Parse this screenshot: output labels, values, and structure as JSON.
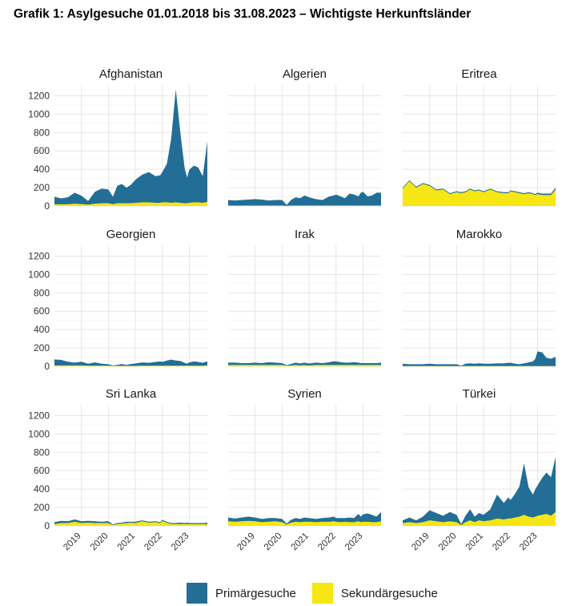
{
  "title": "Grafik 1: Asylgesuche 01.01.2018 bis 31.08.2023 – Wichtigste Herkunftsländer",
  "colors": {
    "primary": "#236e96",
    "secondary": "#f5e614",
    "grid": "#e6e6e6"
  },
  "legend": [
    {
      "label": "Primärgesuche",
      "color": "#236e96"
    },
    {
      "label": "Sekundärgesuche",
      "color": "#f5e614"
    }
  ],
  "chart_data": {
    "type": "area",
    "stacked": true,
    "facets": 9,
    "y_ticks": [
      0,
      200,
      400,
      600,
      800,
      1000,
      1200
    ],
    "x_tick_labels": [
      "2019",
      "2020",
      "2021",
      "2022",
      "2023"
    ],
    "x_range": [
      2018.0,
      2023.67
    ],
    "y_range": [
      0,
      1300
    ],
    "grid": true,
    "legend_position": "bottom",
    "panels": [
      {
        "name": "Afghanistan",
        "x": [
          2018.0,
          2018.25,
          2018.5,
          2018.75,
          2019.0,
          2019.25,
          2019.5,
          2019.75,
          2020.0,
          2020.17,
          2020.33,
          2020.5,
          2020.67,
          2020.83,
          2021.0,
          2021.25,
          2021.5,
          2021.75,
          2021.92,
          2022.0,
          2022.17,
          2022.33,
          2022.5,
          2022.67,
          2022.83,
          2022.92,
          2023.0,
          2023.17,
          2023.33,
          2023.5,
          2023.67
        ],
        "series": [
          {
            "name": "Primärgesuche",
            "values": [
              80,
              65,
              75,
              120,
              90,
              40,
              130,
              160,
              150,
              80,
              190,
              210,
              170,
              200,
              250,
              300,
              330,
              290,
              300,
              330,
              420,
              700,
              1230,
              760,
              380,
              280,
              360,
              400,
              380,
              290,
              660
            ]
          },
          {
            "name": "Sekundärgesuche",
            "values": [
              20,
              18,
              20,
              25,
              22,
              15,
              25,
              30,
              30,
              20,
              30,
              30,
              30,
              30,
              35,
              40,
              40,
              35,
              35,
              40,
              40,
              35,
              40,
              35,
              30,
              30,
              35,
              40,
              40,
              35,
              45
            ]
          }
        ]
      },
      {
        "name": "Algerien",
        "x": [
          2018.0,
          2018.25,
          2018.5,
          2018.75,
          2019.0,
          2019.25,
          2019.5,
          2019.75,
          2020.0,
          2020.17,
          2020.33,
          2020.5,
          2020.67,
          2020.83,
          2021.0,
          2021.25,
          2021.5,
          2021.75,
          2021.92,
          2022.0,
          2022.17,
          2022.33,
          2022.5,
          2022.67,
          2022.83,
          2022.92,
          2023.0,
          2023.17,
          2023.33,
          2023.5,
          2023.67
        ],
        "series": [
          {
            "name": "Primärgesuche",
            "values": [
              60,
              55,
              60,
              65,
              70,
              65,
              55,
              60,
              60,
              10,
              60,
              90,
              80,
              110,
              90,
              70,
              60,
              100,
              110,
              120,
              100,
              80,
              130,
              120,
              100,
              140,
              150,
              100,
              110,
              140,
              140
            ]
          },
          {
            "name": "Sekundärgesuche",
            "values": [
              5,
              5,
              5,
              5,
              5,
              5,
              5,
              5,
              5,
              2,
              5,
              5,
              5,
              5,
              5,
              5,
              5,
              5,
              5,
              5,
              5,
              5,
              5,
              5,
              5,
              5,
              5,
              5,
              5,
              5,
              5
            ]
          }
        ]
      },
      {
        "name": "Eritrea",
        "x": [
          2018.0,
          2018.25,
          2018.5,
          2018.75,
          2019.0,
          2019.25,
          2019.5,
          2019.75,
          2020.0,
          2020.17,
          2020.33,
          2020.5,
          2020.67,
          2020.83,
          2021.0,
          2021.25,
          2021.5,
          2021.75,
          2021.92,
          2022.0,
          2022.17,
          2022.33,
          2022.5,
          2022.67,
          2022.83,
          2022.92,
          2023.0,
          2023.17,
          2023.33,
          2023.5,
          2023.67
        ],
        "series": [
          {
            "name": "Primärgesuche",
            "values": [
              10,
              10,
              10,
              10,
              10,
              10,
              10,
              10,
              10,
              10,
              10,
              10,
              10,
              10,
              10,
              10,
              10,
              10,
              10,
              10,
              10,
              10,
              10,
              10,
              10,
              10,
              15,
              15,
              15,
              15,
              20
            ]
          },
          {
            "name": "Sekundärgesuche",
            "values": [
              190,
              270,
              200,
              240,
              220,
              170,
              180,
              130,
              150,
              140,
              150,
              180,
              160,
              170,
              150,
              180,
              150,
              140,
              140,
              160,
              150,
              140,
              130,
              140,
              130,
              120,
              130,
              120,
              120,
              120,
              180
            ]
          }
        ]
      },
      {
        "name": "Georgien",
        "x": [
          2018.0,
          2018.25,
          2018.5,
          2018.75,
          2019.0,
          2019.25,
          2019.5,
          2019.75,
          2020.0,
          2020.17,
          2020.33,
          2020.5,
          2020.67,
          2020.83,
          2021.0,
          2021.25,
          2021.5,
          2021.75,
          2021.92,
          2022.0,
          2022.17,
          2022.33,
          2022.5,
          2022.67,
          2022.83,
          2022.92,
          2023.0,
          2023.17,
          2023.33,
          2023.5,
          2023.67
        ],
        "series": [
          {
            "name": "Primärgesuche",
            "values": [
              65,
              60,
              40,
              30,
              40,
              20,
              35,
              20,
              15,
              5,
              10,
              20,
              10,
              20,
              25,
              35,
              30,
              40,
              45,
              40,
              55,
              65,
              55,
              50,
              30,
              20,
              35,
              45,
              40,
              30,
              45
            ]
          },
          {
            "name": "Sekundärgesuche",
            "values": [
              10,
              10,
              10,
              10,
              10,
              8,
              8,
              8,
              8,
              5,
              5,
              5,
              5,
              5,
              5,
              8,
              8,
              8,
              8,
              8,
              8,
              8,
              8,
              8,
              8,
              8,
              8,
              8,
              8,
              8,
              10
            ]
          }
        ]
      },
      {
        "name": "Irak",
        "x": [
          2018.0,
          2018.25,
          2018.5,
          2018.75,
          2019.0,
          2019.25,
          2019.5,
          2019.75,
          2020.0,
          2020.17,
          2020.33,
          2020.5,
          2020.67,
          2020.83,
          2021.0,
          2021.25,
          2021.5,
          2021.75,
          2021.92,
          2022.0,
          2022.17,
          2022.33,
          2022.5,
          2022.67,
          2022.83,
          2022.92,
          2023.0,
          2023.17,
          2023.33,
          2023.5,
          2023.67
        ],
        "series": [
          {
            "name": "Primärgesuche",
            "values": [
              25,
              25,
              20,
              20,
              25,
              20,
              30,
              25,
              20,
              5,
              15,
              25,
              20,
              25,
              20,
              25,
              20,
              30,
              40,
              40,
              30,
              25,
              25,
              30,
              25,
              20,
              20,
              20,
              20,
              20,
              25
            ]
          },
          {
            "name": "Sekundärgesuche",
            "values": [
              15,
              15,
              15,
              15,
              15,
              15,
              15,
              15,
              15,
              8,
              10,
              15,
              10,
              15,
              10,
              15,
              15,
              15,
              15,
              15,
              15,
              15,
              15,
              15,
              15,
              15,
              15,
              15,
              15,
              15,
              15
            ]
          }
        ]
      },
      {
        "name": "Marokko",
        "x": [
          2018.0,
          2018.25,
          2018.5,
          2018.75,
          2019.0,
          2019.25,
          2019.5,
          2019.75,
          2020.0,
          2020.17,
          2020.33,
          2020.5,
          2020.67,
          2020.83,
          2021.0,
          2021.25,
          2021.5,
          2021.75,
          2021.92,
          2022.0,
          2022.17,
          2022.33,
          2022.5,
          2022.67,
          2022.83,
          2022.92,
          2023.0,
          2023.17,
          2023.33,
          2023.5,
          2023.67
        ],
        "series": [
          {
            "name": "Primärgesuche",
            "values": [
              25,
              20,
              20,
              20,
              25,
              20,
              20,
              20,
              20,
              5,
              25,
              30,
              25,
              30,
              25,
              25,
              30,
              30,
              35,
              35,
              25,
              20,
              30,
              40,
              50,
              80,
              160,
              150,
              90,
              80,
              100
            ]
          },
          {
            "name": "Sekundärgesuche",
            "values": [
              3,
              3,
              3,
              3,
              3,
              3,
              3,
              3,
              3,
              2,
              3,
              3,
              3,
              3,
              3,
              3,
              3,
              3,
              3,
              3,
              3,
              3,
              3,
              3,
              3,
              3,
              3,
              3,
              3,
              3,
              3
            ]
          }
        ]
      },
      {
        "name": "Sri Lanka",
        "x": [
          2018.0,
          2018.25,
          2018.5,
          2018.75,
          2019.0,
          2019.25,
          2019.5,
          2019.75,
          2020.0,
          2020.17,
          2020.33,
          2020.5,
          2020.67,
          2020.83,
          2021.0,
          2021.25,
          2021.5,
          2021.75,
          2021.92,
          2022.0,
          2022.17,
          2022.33,
          2022.5,
          2022.67,
          2022.83,
          2022.92,
          2023.0,
          2023.17,
          2023.33,
          2023.5,
          2023.67
        ],
        "series": [
          {
            "name": "Primärgesuche",
            "values": [
              20,
              25,
              20,
              25,
              20,
              20,
              20,
              15,
              20,
              5,
              10,
              10,
              15,
              10,
              15,
              10,
              10,
              10,
              10,
              10,
              10,
              10,
              10,
              15,
              10,
              15,
              10,
              10,
              10,
              10,
              15
            ]
          },
          {
            "name": "Sekundärgesuche",
            "values": [
              20,
              30,
              30,
              45,
              30,
              35,
              30,
              30,
              30,
              10,
              20,
              25,
              30,
              35,
              30,
              50,
              35,
              40,
              30,
              55,
              35,
              20,
              20,
              20,
              20,
              20,
              20,
              20,
              20,
              20,
              20
            ]
          }
        ]
      },
      {
        "name": "Syrien",
        "x": [
          2018.0,
          2018.25,
          2018.5,
          2018.75,
          2019.0,
          2019.25,
          2019.5,
          2019.75,
          2020.0,
          2020.17,
          2020.33,
          2020.5,
          2020.67,
          2020.83,
          2021.0,
          2021.25,
          2021.5,
          2021.75,
          2021.92,
          2022.0,
          2022.17,
          2022.33,
          2022.5,
          2022.67,
          2022.83,
          2022.92,
          2023.0,
          2023.17,
          2023.33,
          2023.5,
          2023.67
        ],
        "series": [
          {
            "name": "Primärgesuche",
            "values": [
              40,
              35,
              40,
              45,
              40,
              35,
              40,
              35,
              35,
              10,
              30,
              40,
              35,
              45,
              40,
              35,
              40,
              45,
              50,
              40,
              45,
              40,
              50,
              45,
              80,
              60,
              80,
              90,
              80,
              60,
              100
            ]
          },
          {
            "name": "Sekundärgesuche",
            "values": [
              50,
              45,
              50,
              55,
              50,
              40,
              45,
              50,
              40,
              15,
              35,
              45,
              40,
              45,
              45,
              40,
              45,
              45,
              50,
              45,
              40,
              45,
              40,
              40,
              50,
              40,
              45,
              45,
              40,
              40,
              50
            ]
          }
        ]
      },
      {
        "name": "Türkei",
        "x": [
          2018.0,
          2018.25,
          2018.5,
          2018.75,
          2019.0,
          2019.25,
          2019.5,
          2019.75,
          2020.0,
          2020.17,
          2020.33,
          2020.5,
          2020.67,
          2020.83,
          2021.0,
          2021.25,
          2021.5,
          2021.75,
          2021.92,
          2022.0,
          2022.17,
          2022.33,
          2022.5,
          2022.67,
          2022.83,
          2022.92,
          2023.0,
          2023.17,
          2023.33,
          2023.5,
          2023.67
        ],
        "series": [
          {
            "name": "Primärgesuche",
            "values": [
              30,
              50,
              30,
              60,
              110,
              90,
              70,
              100,
              80,
              10,
              70,
              120,
              60,
              80,
              70,
              120,
              260,
              180,
              230,
              200,
              260,
              330,
              560,
              320,
              250,
              300,
              330,
              400,
              450,
              420,
              600
            ]
          },
          {
            "name": "Sekundärgesuche",
            "values": [
              30,
              40,
              30,
              40,
              60,
              50,
              40,
              50,
              40,
              10,
              40,
              60,
              40,
              60,
              50,
              60,
              80,
              70,
              80,
              80,
              90,
              100,
              120,
              100,
              90,
              100,
              110,
              120,
              130,
              110,
              150
            ]
          }
        ]
      }
    ]
  }
}
